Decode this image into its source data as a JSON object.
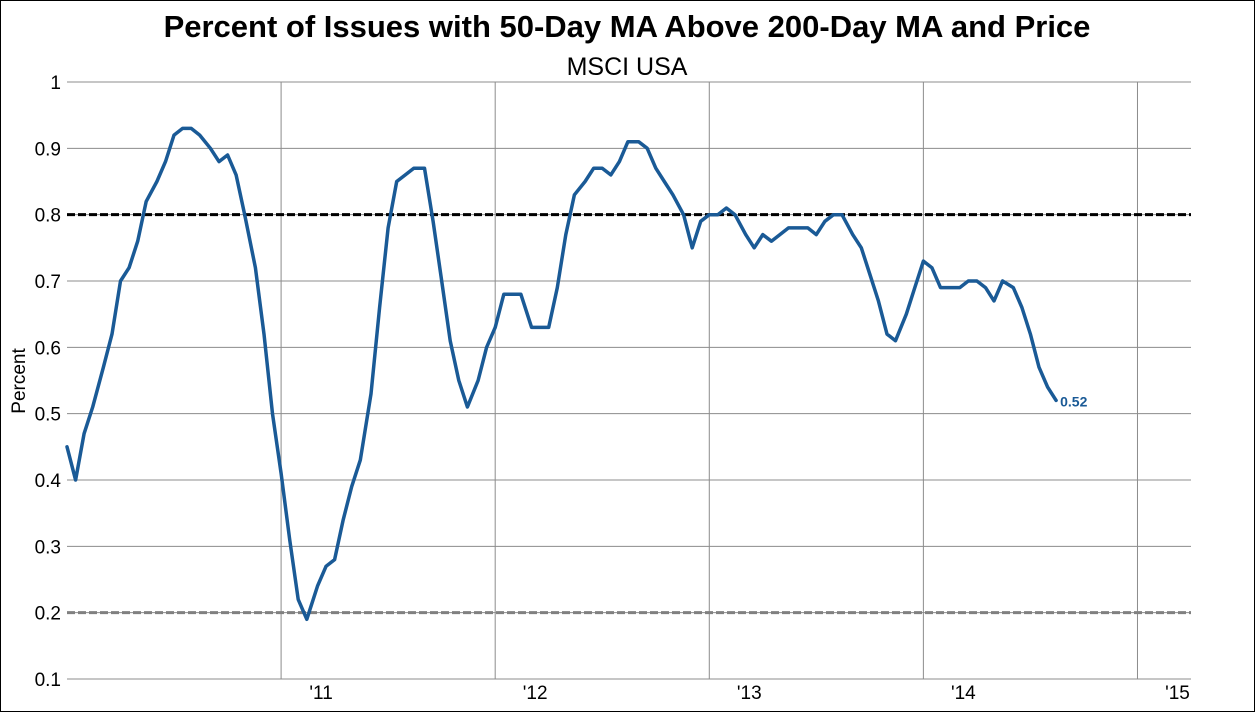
{
  "chart_data": {
    "type": "line",
    "title": "Percent of Issues with 50-Day MA Above 200-Day MA and Price",
    "subtitle": "MSCI USA",
    "ylabel": "Percent",
    "xlabel": "",
    "ylim": [
      0.1,
      1.0
    ],
    "yticks": [
      "1",
      "0.9",
      "0.8",
      "0.7",
      "0.6",
      "0.5",
      "0.4",
      "0.3",
      "0.2",
      "0.1"
    ],
    "xlim": [
      2010.0,
      2015.25
    ],
    "xticks": [
      {
        "label": "'11",
        "value": 2011
      },
      {
        "label": "'12",
        "value": 2012
      },
      {
        "label": "'13",
        "value": 2013
      },
      {
        "label": "'14",
        "value": 2014
      },
      {
        "label": "'15",
        "value": 2015
      }
    ],
    "grid": true,
    "reference_lines": [
      {
        "y": 0.8,
        "color": "#000000",
        "style": "dashed"
      },
      {
        "y": 0.2,
        "color": "#808080",
        "style": "dashed"
      }
    ],
    "series": [
      {
        "color": "#1a5a96",
        "end_label": "0.52",
        "points": [
          [
            2010.0,
            0.45
          ],
          [
            2010.04,
            0.4
          ],
          [
            2010.08,
            0.47
          ],
          [
            2010.12,
            0.51
          ],
          [
            2010.17,
            0.57
          ],
          [
            2010.21,
            0.62
          ],
          [
            2010.25,
            0.7
          ],
          [
            2010.29,
            0.72
          ],
          [
            2010.33,
            0.76
          ],
          [
            2010.37,
            0.82
          ],
          [
            2010.42,
            0.85
          ],
          [
            2010.46,
            0.88
          ],
          [
            2010.5,
            0.92
          ],
          [
            2010.54,
            0.93
          ],
          [
            2010.58,
            0.93
          ],
          [
            2010.62,
            0.92
          ],
          [
            2010.67,
            0.9
          ],
          [
            2010.71,
            0.88
          ],
          [
            2010.75,
            0.89
          ],
          [
            2010.79,
            0.86
          ],
          [
            2010.83,
            0.8
          ],
          [
            2010.88,
            0.72
          ],
          [
            2010.92,
            0.62
          ],
          [
            2010.96,
            0.5
          ],
          [
            2011.0,
            0.41
          ],
          [
            2011.04,
            0.31
          ],
          [
            2011.08,
            0.22
          ],
          [
            2011.12,
            0.19
          ],
          [
            2011.17,
            0.24
          ],
          [
            2011.21,
            0.27
          ],
          [
            2011.25,
            0.28
          ],
          [
            2011.29,
            0.34
          ],
          [
            2011.33,
            0.39
          ],
          [
            2011.37,
            0.43
          ],
          [
            2011.42,
            0.53
          ],
          [
            2011.46,
            0.66
          ],
          [
            2011.5,
            0.78
          ],
          [
            2011.54,
            0.85
          ],
          [
            2011.58,
            0.86
          ],
          [
            2011.62,
            0.87
          ],
          [
            2011.67,
            0.87
          ],
          [
            2011.71,
            0.79
          ],
          [
            2011.75,
            0.7
          ],
          [
            2011.79,
            0.61
          ],
          [
            2011.83,
            0.55
          ],
          [
            2011.87,
            0.51
          ],
          [
            2011.92,
            0.55
          ],
          [
            2011.96,
            0.6
          ],
          [
            2012.0,
            0.63
          ],
          [
            2012.04,
            0.68
          ],
          [
            2012.08,
            0.68
          ],
          [
            2012.12,
            0.68
          ],
          [
            2012.17,
            0.63
          ],
          [
            2012.21,
            0.63
          ],
          [
            2012.25,
            0.63
          ],
          [
            2012.29,
            0.69
          ],
          [
            2012.33,
            0.77
          ],
          [
            2012.37,
            0.83
          ],
          [
            2012.42,
            0.85
          ],
          [
            2012.46,
            0.87
          ],
          [
            2012.5,
            0.87
          ],
          [
            2012.54,
            0.86
          ],
          [
            2012.58,
            0.88
          ],
          [
            2012.62,
            0.91
          ],
          [
            2012.67,
            0.91
          ],
          [
            2012.71,
            0.9
          ],
          [
            2012.75,
            0.87
          ],
          [
            2012.79,
            0.85
          ],
          [
            2012.83,
            0.83
          ],
          [
            2012.88,
            0.8
          ],
          [
            2012.92,
            0.75
          ],
          [
            2012.96,
            0.79
          ],
          [
            2013.0,
            0.8
          ],
          [
            2013.04,
            0.8
          ],
          [
            2013.08,
            0.81
          ],
          [
            2013.12,
            0.8
          ],
          [
            2013.17,
            0.77
          ],
          [
            2013.21,
            0.75
          ],
          [
            2013.25,
            0.77
          ],
          [
            2013.29,
            0.76
          ],
          [
            2013.33,
            0.77
          ],
          [
            2013.37,
            0.78
          ],
          [
            2013.42,
            0.78
          ],
          [
            2013.46,
            0.78
          ],
          [
            2013.5,
            0.77
          ],
          [
            2013.54,
            0.79
          ],
          [
            2013.58,
            0.8
          ],
          [
            2013.62,
            0.8
          ],
          [
            2013.67,
            0.77
          ],
          [
            2013.71,
            0.75
          ],
          [
            2013.75,
            0.71
          ],
          [
            2013.79,
            0.67
          ],
          [
            2013.83,
            0.62
          ],
          [
            2013.87,
            0.61
          ],
          [
            2013.92,
            0.65
          ],
          [
            2013.96,
            0.69
          ],
          [
            2014.0,
            0.73
          ],
          [
            2014.04,
            0.72
          ],
          [
            2014.08,
            0.69
          ],
          [
            2014.12,
            0.69
          ],
          [
            2014.17,
            0.69
          ],
          [
            2014.21,
            0.7
          ],
          [
            2014.25,
            0.7
          ],
          [
            2014.29,
            0.69
          ],
          [
            2014.33,
            0.67
          ],
          [
            2014.37,
            0.7
          ],
          [
            2014.42,
            0.69
          ],
          [
            2014.46,
            0.66
          ],
          [
            2014.5,
            0.62
          ],
          [
            2014.54,
            0.57
          ],
          [
            2014.58,
            0.54
          ],
          [
            2014.62,
            0.52
          ]
        ]
      }
    ]
  }
}
